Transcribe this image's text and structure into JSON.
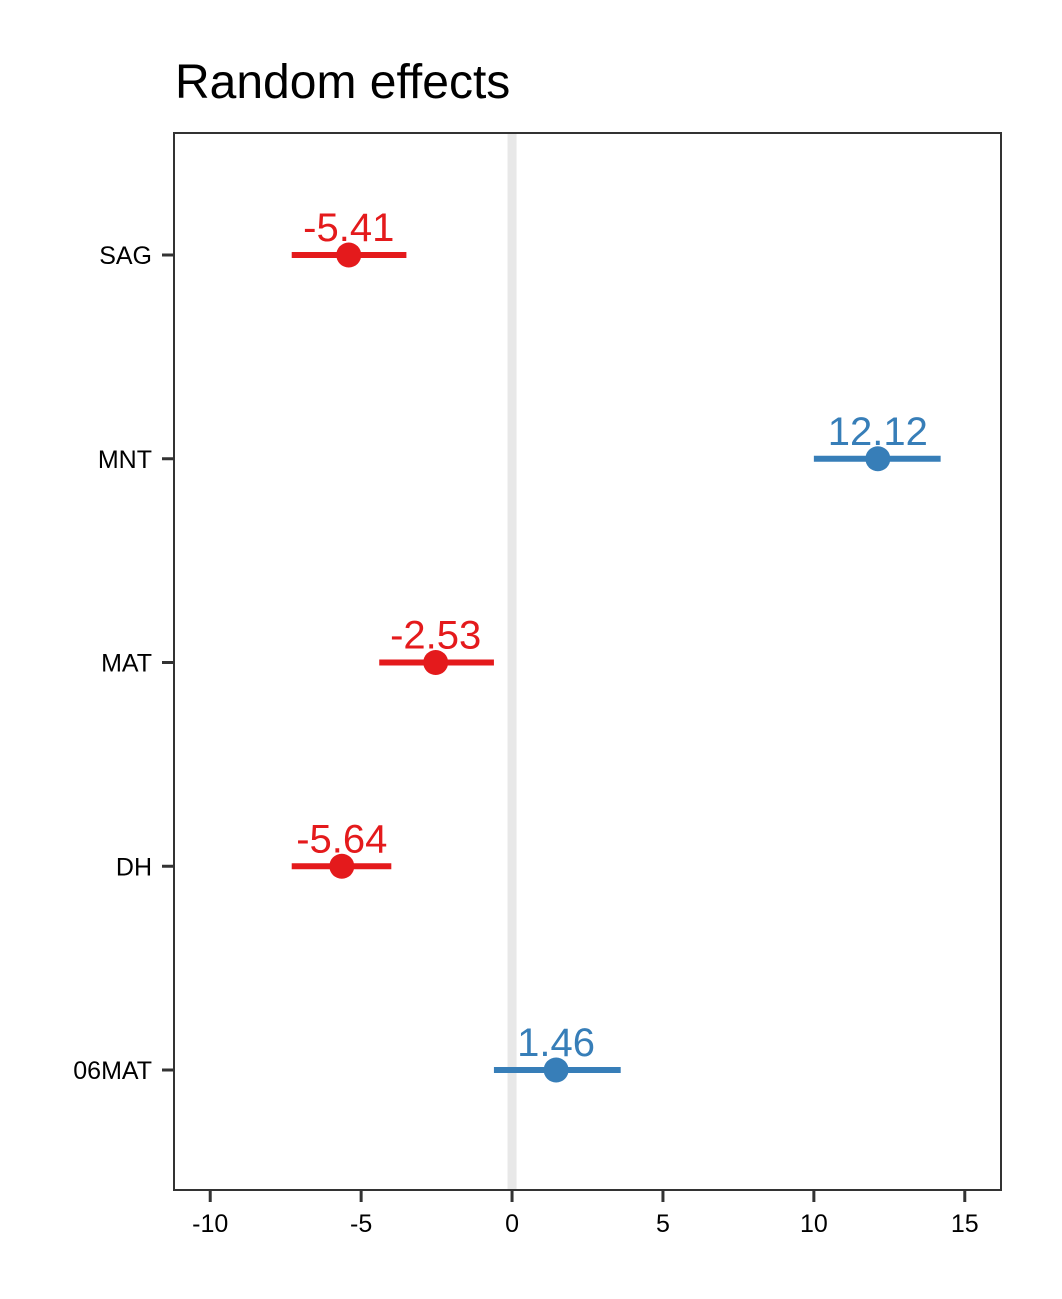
{
  "chart_data": {
    "type": "scatter",
    "title": "Random effects",
    "xlabel": "",
    "ylabel": "",
    "xlim": [
      -11.2,
      16.2
    ],
    "xticks": [
      "-10",
      "-5",
      "0",
      "5",
      "10",
      "15"
    ],
    "xtick_values": [
      -10,
      -5,
      0,
      5,
      10,
      15
    ],
    "reference_line_x": 0,
    "grid": false,
    "legend": "none",
    "colors": {
      "negative": "#e41a1c",
      "positive": "#377eb8",
      "reference_line": "#e8e8e8",
      "axis": "#333333"
    },
    "categories": [
      "SAG",
      "MNT",
      "MAT",
      "DH",
      "06MAT"
    ],
    "points": [
      {
        "term": "SAG",
        "estimate": -5.41,
        "ci_low": -7.3,
        "ci_high": -3.5,
        "label": "-5.41"
      },
      {
        "term": "MNT",
        "estimate": 12.12,
        "ci_low": 10.0,
        "ci_high": 14.2,
        "label": "12.12"
      },
      {
        "term": "MAT",
        "estimate": -2.53,
        "ci_low": -4.4,
        "ci_high": -0.6,
        "label": "-2.53"
      },
      {
        "term": "DH",
        "estimate": -5.64,
        "ci_low": -7.3,
        "ci_high": -4.0,
        "label": "-5.64"
      },
      {
        "term": "06MAT",
        "estimate": 1.46,
        "ci_low": -0.6,
        "ci_high": 3.6,
        "label": "1.46"
      }
    ]
  }
}
